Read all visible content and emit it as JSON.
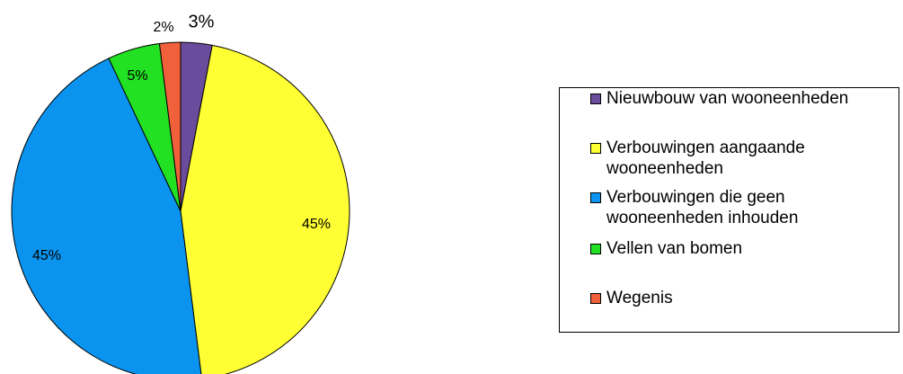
{
  "chart_data": {
    "type": "pie",
    "categories": [
      "Nieuwbouw van wooneenheden",
      "Verbouwingen aangaande wooneenheden",
      "Verbouwingen die geen wooneenheden inhouden",
      "Vellen van bomen",
      "Wegenis"
    ],
    "values": [
      3,
      45,
      45,
      5,
      2
    ],
    "value_labels": [
      "3%",
      "45%",
      "45%",
      "5%",
      "2%"
    ],
    "colors": [
      "#6a4c9c",
      "#ffff33",
      "#0a94f0",
      "#22e022",
      "#f0603a"
    ],
    "legend": "right"
  }
}
